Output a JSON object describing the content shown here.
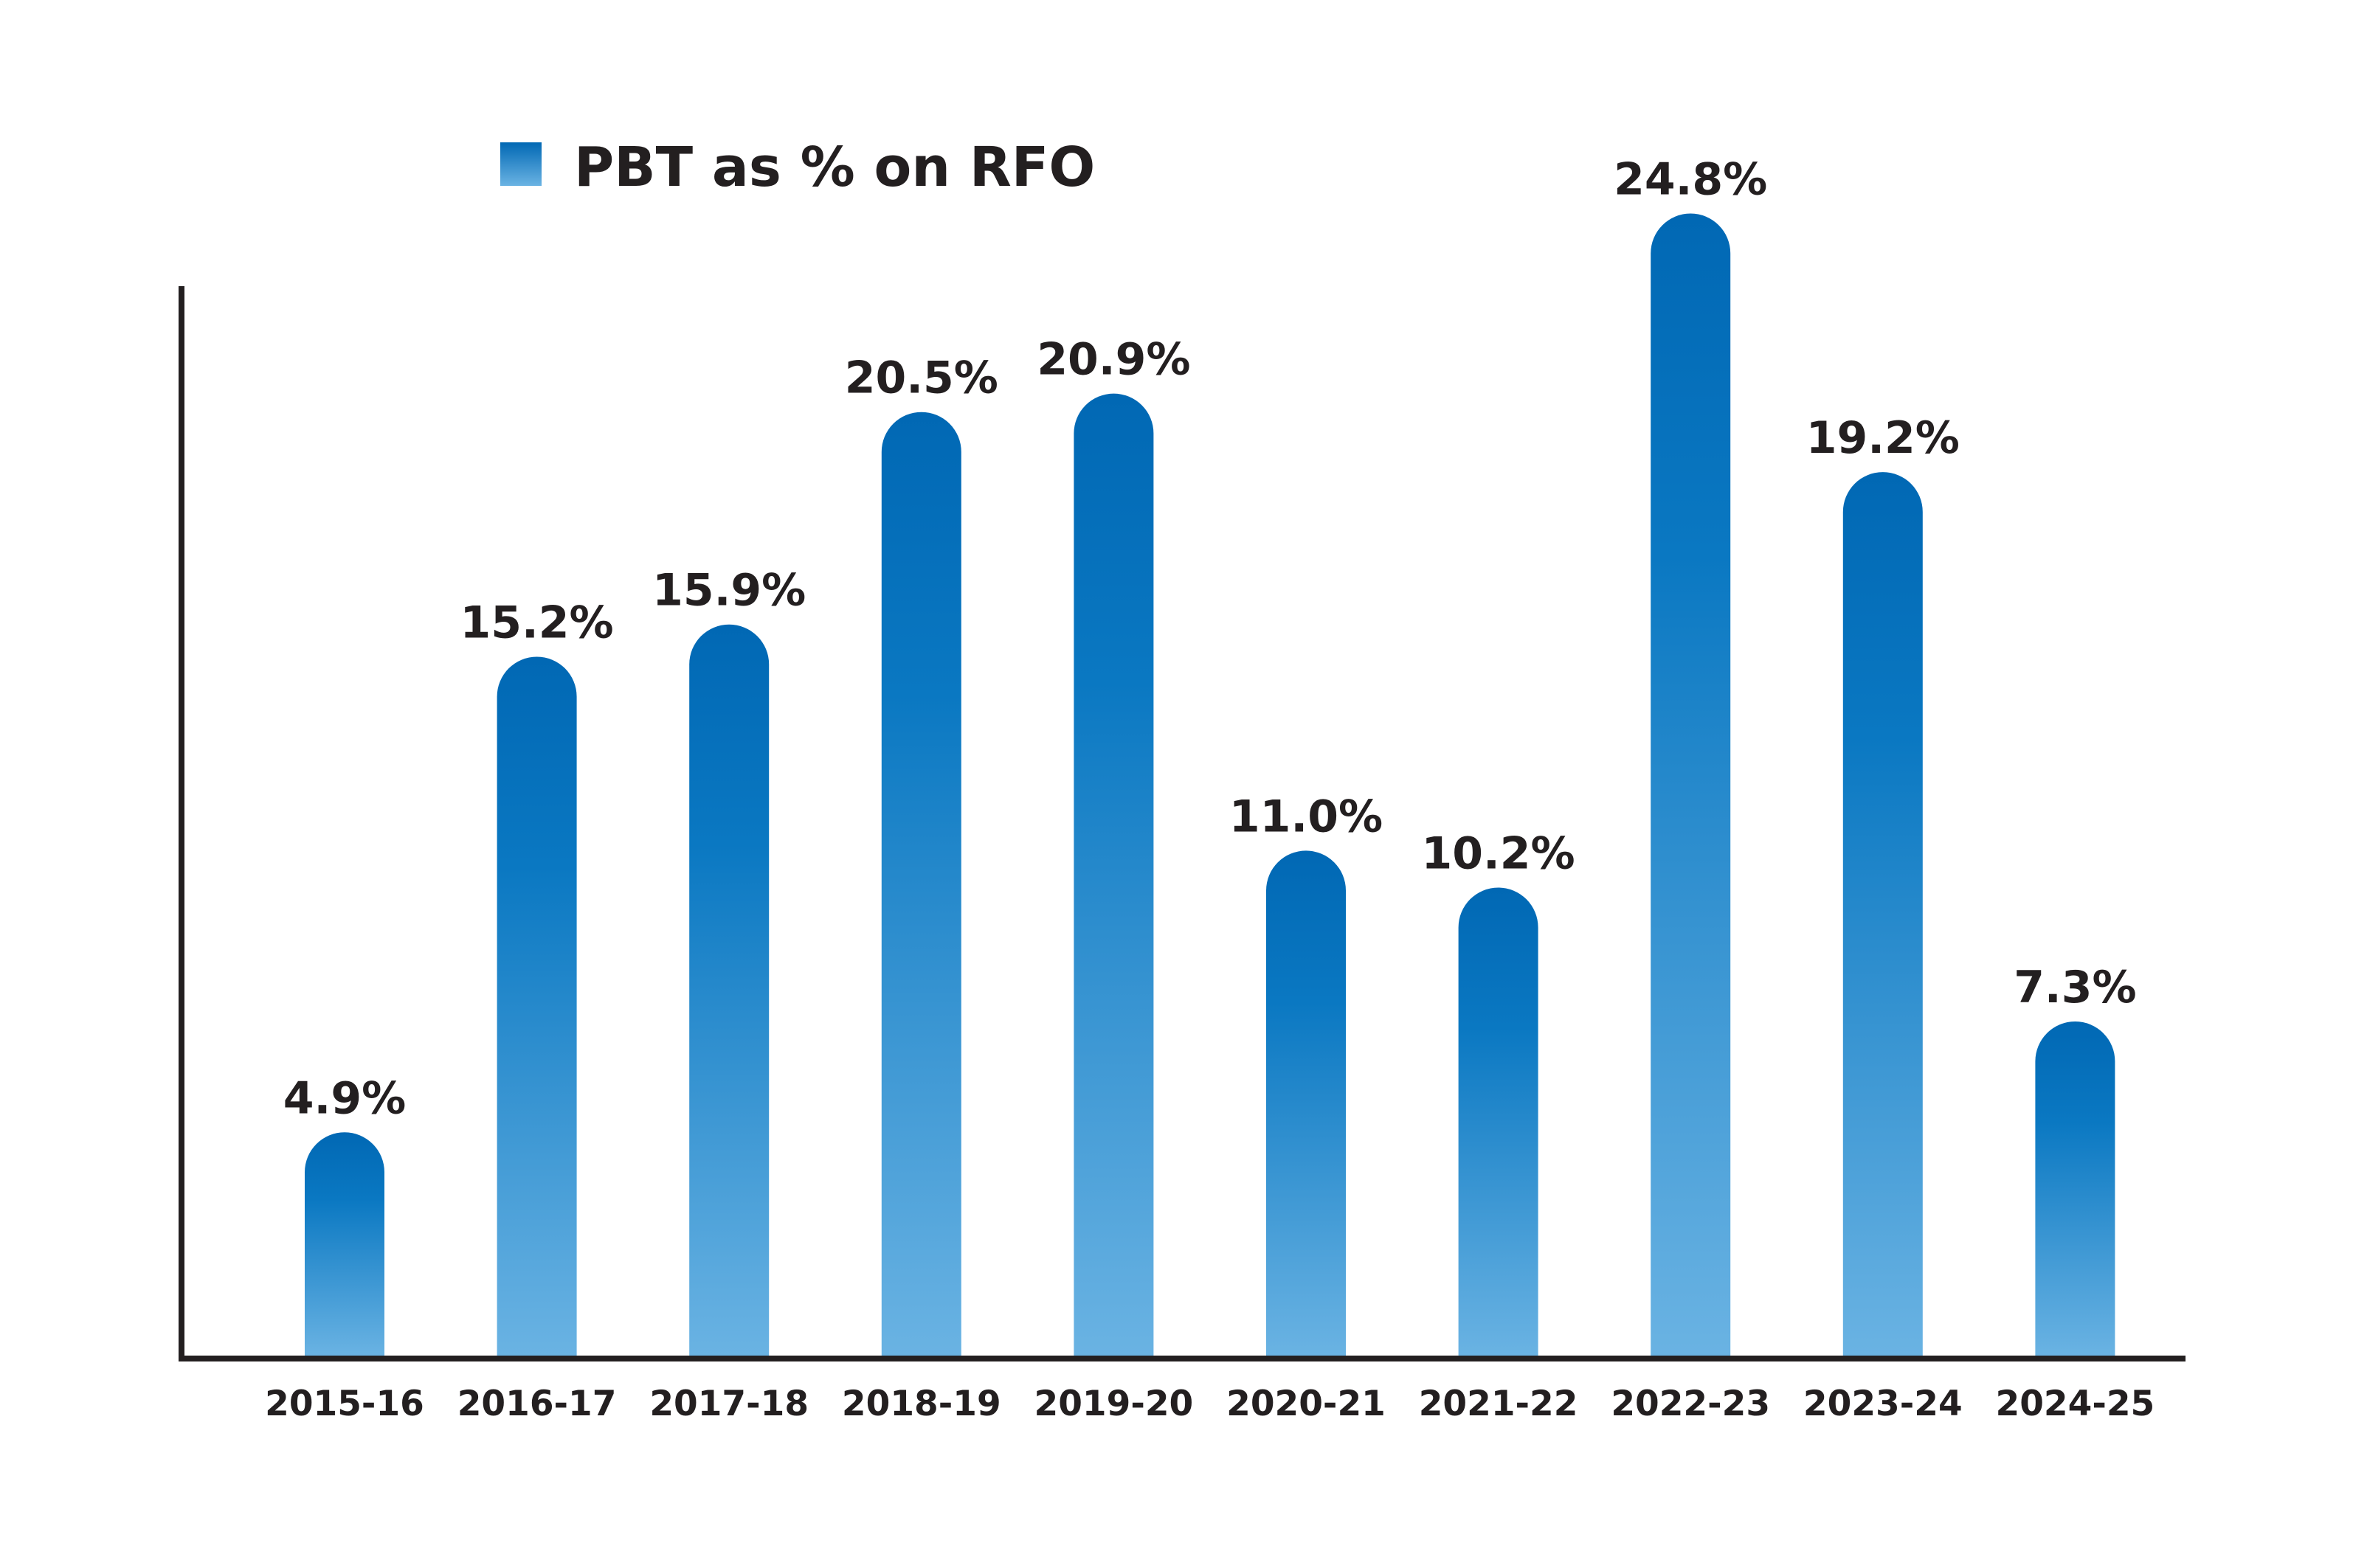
{
  "chart_data": {
    "type": "bar",
    "categories": [
      "2015-16",
      "2016-17",
      "2017-18",
      "2018-19",
      "2019-20",
      "2020-21",
      "2021-22",
      "2022-23",
      "2023-24",
      "2024-25"
    ],
    "series": [
      {
        "name": "PBT as % on RFO",
        "values": [
          4.9,
          15.2,
          15.9,
          20.5,
          20.9,
          11.0,
          10.2,
          24.8,
          19.2,
          7.3
        ],
        "labels": [
          "4.9%",
          "15.2%",
          "15.9%",
          "20.5%",
          "20.9%",
          "11.0%",
          "10.2%",
          "24.8%",
          "19.2%",
          "7.3%"
        ]
      }
    ],
    "title": "",
    "xlabel": "",
    "ylabel": "",
    "ylim": [
      0,
      25
    ],
    "grid": false,
    "legend_position": "top-left",
    "colors": {
      "bar_top": "#0168b4",
      "bar_mid": "#0a78c2",
      "bar_bottom": "#6ab3e3",
      "axis": "#231f20",
      "text": "#231f20"
    }
  }
}
